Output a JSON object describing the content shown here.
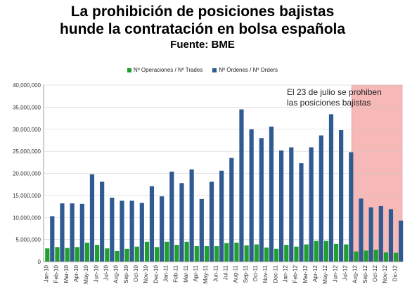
{
  "title_line1": "La prohibición de posiciones bajistas",
  "title_line2": "hunde la contratación en bolsa española",
  "source": "Fuente: BME",
  "legend": [
    {
      "name": "Nº Operaciones / Nº Trades",
      "color": "#1e9f2f"
    },
    {
      "name": "Nº Órdenes / Nº Orders",
      "color": "#2f5b92"
    }
  ],
  "annotation_line1": "El 23 de julio se prohiben",
  "annotation_line2": "las posiciones bajistas",
  "chart_data": {
    "type": "bar",
    "ylim": [
      0,
      40000000
    ],
    "yticks": [
      "0",
      "5,000,000",
      "10,000,000",
      "15,000,000",
      "20,000,000",
      "25,000,000",
      "30,000,000",
      "35,000,000",
      "40,000,000"
    ],
    "ytick_values": [
      0,
      5000000,
      10000000,
      15000000,
      20000000,
      25000000,
      30000000,
      35000000,
      40000000
    ],
    "categories": [
      "Jan-10",
      "Feb-10",
      "Mar-10",
      "Apr-10",
      "May-10",
      "Jun-10",
      "Jul-10",
      "Aug-10",
      "Sep-10",
      "Oct-10",
      "Nov-10",
      "Dec-10",
      "Jan-11",
      "Feb-11",
      "Mar-11",
      "Apr-11",
      "May-11",
      "Jun-11",
      "Jul-11",
      "Aug-11",
      "Sep-11",
      "Oct-11",
      "Nov-11",
      "Dec-11",
      "Jan-12",
      "Feb-12",
      "Mar-12",
      "Apr-12",
      "May-12",
      "Jun-12",
      "Jul-12",
      "Aug-12",
      "Sep-12",
      "Oct-12",
      "Nov-12",
      "Dic-12"
    ],
    "xtick_labels": [
      "Jan-10",
      "",
      "Feb-10",
      "",
      "Mar-10",
      "",
      "Apr-10",
      "",
      "May-10",
      "",
      "Jun-10",
      "",
      "Jul-10",
      "",
      "Aug-10",
      "",
      "Sep-10",
      "",
      "Oct-10",
      "",
      "Nov-10",
      "",
      "Dec-10",
      "",
      "Jan-11",
      "",
      "Feb-11",
      "",
      "Mar-11",
      "",
      "Apr-11",
      "",
      "May-11",
      "",
      "Jun-11",
      "",
      "Jul-11",
      "",
      "Aug-11",
      "",
      "Sep-11",
      "",
      "Oct-11",
      "",
      "Nov-11",
      "",
      "Dec-11",
      "",
      "Jan-12",
      "",
      "Feb-12",
      "",
      "Mar-12",
      "",
      "Apr-12",
      "",
      "May-12",
      "",
      "Jun-12",
      "",
      "Jul-12",
      "",
      "Aug-12",
      "",
      "Sep-12",
      "",
      "Oct-12",
      "",
      "Nov-12",
      "",
      "Dic-12",
      ""
    ],
    "series": [
      {
        "name": "Nº Operaciones / Nº Trades",
        "color": "#1e9f2f",
        "values": [
          3000000,
          3300000,
          3100000,
          3300000,
          4300000,
          3800000,
          3000000,
          2400000,
          2900000,
          3400000,
          4500000,
          3300000,
          4500000,
          3800000,
          4500000,
          3500000,
          3500000,
          3500000,
          4200000,
          4300000,
          3700000,
          3900000,
          3200000,
          2900000,
          3800000,
          3400000,
          3900000,
          4700000,
          4700000,
          4000000,
          3900000,
          2300000,
          2500000,
          2700000,
          2100000,
          2000000
        ]
      },
      {
        "name": "Nº Órdenes / Nº Orders",
        "color": "#2f5b92",
        "values": [
          10300000,
          13200000,
          13200000,
          13100000,
          19800000,
          18100000,
          14500000,
          13800000,
          13800000,
          13300000,
          17100000,
          14800000,
          20400000,
          17800000,
          20900000,
          14200000,
          18100000,
          20600000,
          23500000,
          34500000,
          30000000,
          28000000,
          30600000,
          25200000,
          25900000,
          22300000,
          25900000,
          28600000,
          33400000,
          29800000,
          24800000,
          14300000,
          12300000,
          12600000,
          11900000,
          9300000
        ]
      }
    ],
    "shaded_region": {
      "from_index": 31,
      "to_index": 35,
      "color": "#f7b8b8"
    },
    "grid": "horizontal"
  }
}
